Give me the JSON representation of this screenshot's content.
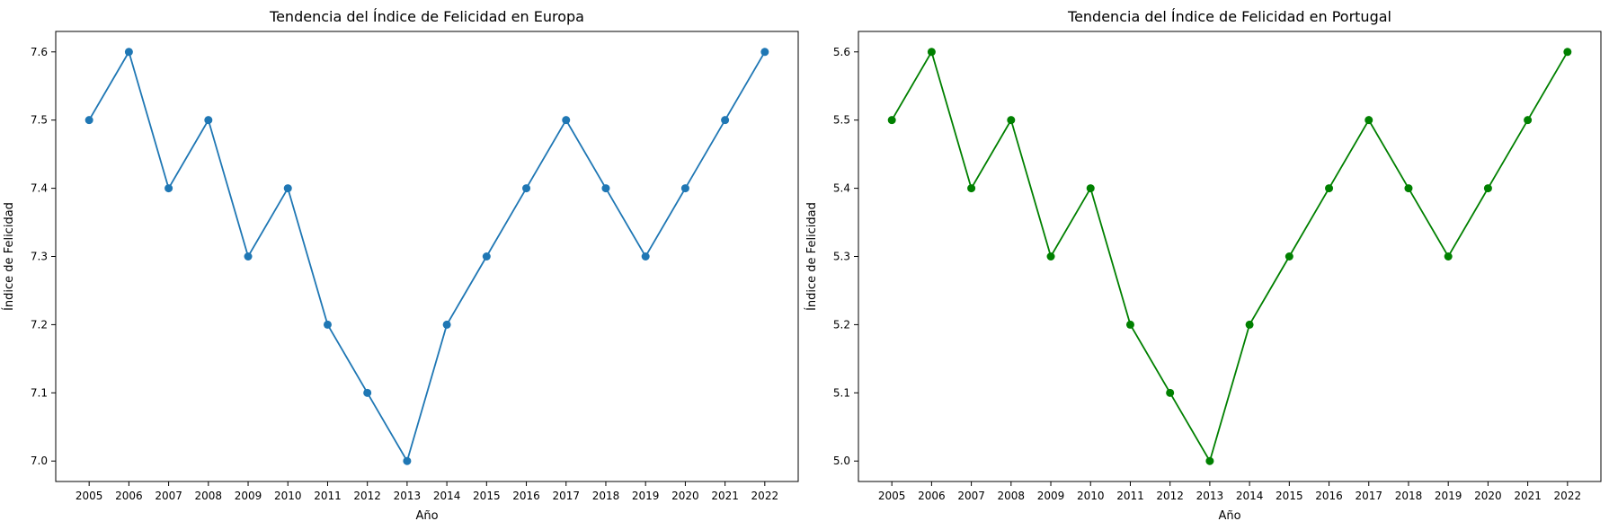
{
  "chart_data": [
    {
      "type": "line",
      "title": "Tendencia del Índice de Felicidad en Europa",
      "xlabel": "Año",
      "ylabel": "Índice de Felicidad",
      "x": [
        "2005",
        "2006",
        "2007",
        "2008",
        "2009",
        "2010",
        "2011",
        "2012",
        "2013",
        "2014",
        "2015",
        "2016",
        "2017",
        "2018",
        "2019",
        "2020",
        "2021",
        "2022"
      ],
      "series": [
        {
          "values": [
            7.5,
            7.6,
            7.4,
            7.5,
            7.3,
            7.4,
            7.2,
            7.1,
            7.0,
            7.2,
            7.3,
            7.4,
            7.5,
            7.4,
            7.3,
            7.4,
            7.5,
            7.6
          ],
          "color": "#1f77b4",
          "marker": "circle"
        }
      ],
      "ylim": [
        6.97,
        7.63
      ],
      "yticks": [
        "7.0",
        "7.1",
        "7.2",
        "7.3",
        "7.4",
        "7.5",
        "7.6"
      ],
      "grid": false
    },
    {
      "type": "line",
      "title": "Tendencia del Índice de Felicidad en Portugal",
      "xlabel": "Año",
      "ylabel": "Índice de Felicidad",
      "x": [
        "2005",
        "2006",
        "2007",
        "2008",
        "2009",
        "2010",
        "2011",
        "2012",
        "2013",
        "2014",
        "2015",
        "2016",
        "2017",
        "2018",
        "2019",
        "2020",
        "2021",
        "2022"
      ],
      "series": [
        {
          "values": [
            5.5,
            5.6,
            5.4,
            5.5,
            5.3,
            5.4,
            5.2,
            5.1,
            5.0,
            5.2,
            5.3,
            5.4,
            5.5,
            5.4,
            5.3,
            5.4,
            5.5,
            5.6
          ],
          "color": "#008000",
          "marker": "circle"
        }
      ],
      "ylim": [
        4.97,
        5.63
      ],
      "yticks": [
        "5.0",
        "5.1",
        "5.2",
        "5.3",
        "5.4",
        "5.5",
        "5.6"
      ],
      "grid": false
    }
  ]
}
